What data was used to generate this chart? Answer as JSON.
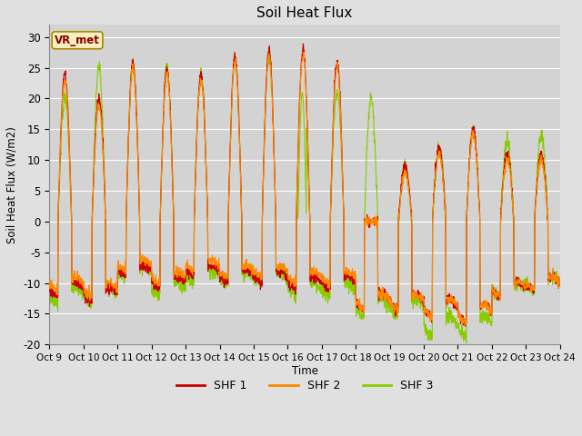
{
  "title": "Soil Heat Flux",
  "ylabel": "Soil Heat Flux (W/m2)",
  "xlabel": "Time",
  "ylim": [
    -20,
    32
  ],
  "figsize": [
    6.4,
    4.8
  ],
  "dpi": 100,
  "background_color": "#e0e0e0",
  "plot_bg_color": "#d3d3d3",
  "grid_color": "#ffffff",
  "colors": {
    "SHF 1": "#cc0000",
    "SHF 2": "#ff8800",
    "SHF 3": "#88cc00"
  },
  "legend_label": "VR_met",
  "legend_bg": "#f5f0c0",
  "legend_border": "#aa8800",
  "x_tick_labels": [
    "Oct 9",
    "Oct 10",
    "Oct 11",
    "Oct 12",
    "Oct 13",
    "Oct 14",
    "Oct 15",
    "Oct 16",
    "Oct 17",
    "Oct 18",
    "Oct 19",
    "Oct 20",
    "Oct 21",
    "Oct 22",
    "Oct 23",
    "Oct 24"
  ],
  "yticks": [
    -20,
    -15,
    -10,
    -5,
    0,
    5,
    10,
    15,
    20,
    25,
    30
  ],
  "n_days": 15,
  "points_per_day": 144
}
